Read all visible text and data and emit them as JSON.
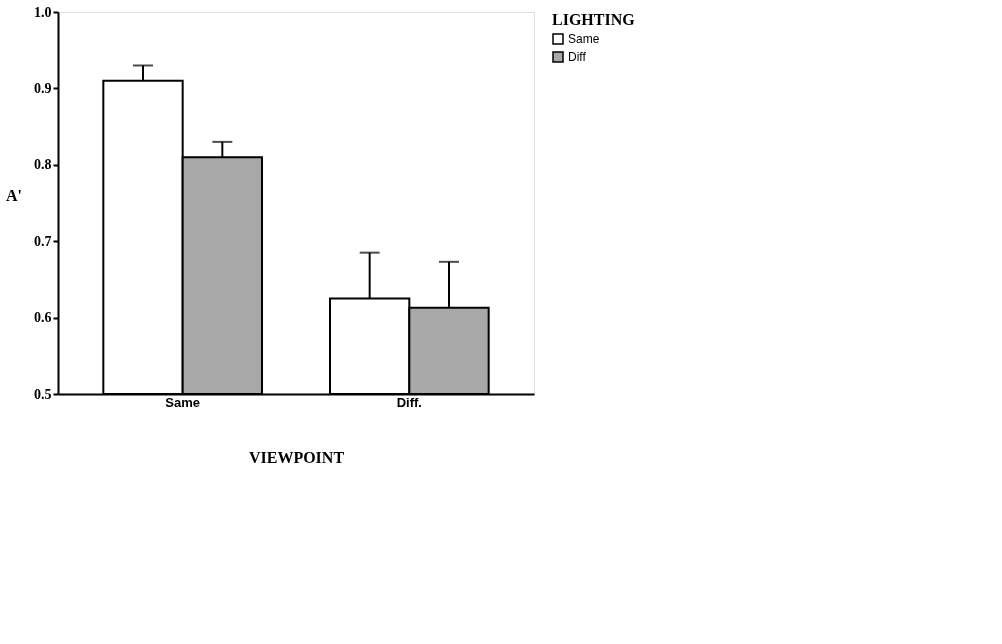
{
  "chart_data": {
    "type": "bar",
    "xlabel": "VIEWPOINT",
    "ylabel": "A'",
    "legend_title": "LIGHTING",
    "categories": [
      "Same",
      "Diff."
    ],
    "series": [
      {
        "name": "Same",
        "color": "#ffffff",
        "values": [
          0.91,
          0.625
        ],
        "errors": [
          [
            0.91,
            0.93
          ],
          [
            0.625,
            0.685
          ]
        ]
      },
      {
        "name": "Diff",
        "color": "#a8a8a8",
        "values": [
          0.81,
          0.613
        ],
        "errors": [
          [
            0.81,
            0.83
          ],
          [
            0.613,
            0.673
          ]
        ]
      }
    ],
    "ylim": [
      0.5,
      1.0
    ],
    "yticks": [
      0.5,
      0.6,
      0.7,
      0.8,
      0.9,
      {
        "value": 1.0,
        "label": "1.0"
      }
    ],
    "grid": false,
    "legend": "right"
  }
}
